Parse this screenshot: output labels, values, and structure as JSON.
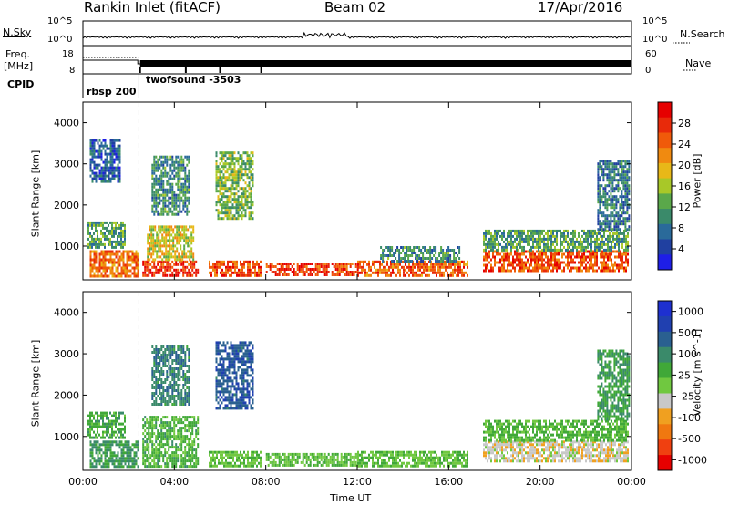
{
  "header": {
    "station": "Rankin Inlet (fitACF)",
    "beam": "Beam 02",
    "date": "17/Apr/2016"
  },
  "top_panels": {
    "nsky_label": "N.Sky",
    "nsky_ticks": [
      "10^5",
      "10^0"
    ],
    "nsearch_label": "N.Search",
    "nsearch_ticks": [
      "10^5",
      "10^0"
    ],
    "freq_label": "Freq.",
    "freq_unit": "[MHz]",
    "freq_ticks": [
      "18",
      "8"
    ],
    "nave_label": "Nave",
    "nave_ticks": [
      "60",
      "0"
    ],
    "cpid_label": "CPID",
    "cpid_entries": [
      "rbsp 200",
      "twofsound -3503"
    ]
  },
  "colors": {
    "power_scale": [
      "#1e1ee6",
      "#2040a0",
      "#2a6a9a",
      "#3a8a6a",
      "#5aa84a",
      "#a8c828",
      "#e8b818",
      "#f08a10",
      "#f05a0a",
      "#e82a0a",
      "#e60000"
    ],
    "velocity_scale": [
      "#e60000",
      "#f04010",
      "#f07810",
      "#f0a020",
      "#c8c8c8",
      "#70c840",
      "#40a838",
      "#3a8a6a",
      "#2a6090",
      "#2040b0",
      "#1e30d0"
    ]
  },
  "chart_data": [
    {
      "type": "heatmap",
      "title": "",
      "xlabel": "",
      "ylabel": "Slant Range [km]",
      "xlim": [
        "00:00",
        "24:00"
      ],
      "ylim": [
        180,
        4500
      ],
      "y_ticks": [
        "1000",
        "2000",
        "3000",
        "4000"
      ],
      "x_ticks": [
        "00:00",
        "04:00",
        "08:00",
        "12:00",
        "16:00",
        "20:00",
        "00:00"
      ],
      "colorbar": {
        "label": "Power [dB]",
        "range": [
          0,
          32
        ],
        "ticks": [
          "4",
          "8",
          "12",
          "16",
          "20",
          "24",
          "28"
        ]
      },
      "regions": [
        {
          "t": [
            0.3,
            2.4
          ],
          "r": [
            300,
            900
          ],
          "value": 24
        },
        {
          "t": [
            0.2,
            1.8
          ],
          "r": [
            1000,
            1600
          ],
          "value": 12
        },
        {
          "t": [
            0.3,
            1.6
          ],
          "r": [
            2600,
            3600
          ],
          "value": 6
        },
        {
          "t": [
            2.6,
            5.0
          ],
          "r": [
            300,
            650
          ],
          "value": 28
        },
        {
          "t": [
            2.8,
            4.8
          ],
          "r": [
            700,
            1500
          ],
          "value": 18
        },
        {
          "t": [
            3.0,
            4.6
          ],
          "r": [
            1800,
            3200
          ],
          "value": 10
        },
        {
          "t": [
            5.5,
            7.8
          ],
          "r": [
            300,
            650
          ],
          "value": 26
        },
        {
          "t": [
            5.8,
            7.4
          ],
          "r": [
            1700,
            3300
          ],
          "value": 14
        },
        {
          "t": [
            8.0,
            12.0
          ],
          "r": [
            300,
            600
          ],
          "value": 27
        },
        {
          "t": [
            12.0,
            16.8
          ],
          "r": [
            300,
            650
          ],
          "value": 25
        },
        {
          "t": [
            13.0,
            16.5
          ],
          "r": [
            650,
            1000
          ],
          "value": 10
        },
        {
          "t": [
            17.5,
            23.8
          ],
          "r": [
            400,
            900
          ],
          "value": 26
        },
        {
          "t": [
            17.5,
            23.8
          ],
          "r": [
            900,
            1400
          ],
          "value": 12
        },
        {
          "t": [
            22.5,
            23.9
          ],
          "r": [
            1400,
            3100
          ],
          "value": 8
        }
      ]
    },
    {
      "type": "heatmap",
      "title": "",
      "xlabel": "Time UT",
      "ylabel": "Slant Range [km]",
      "xlim": [
        "00:00",
        "24:00"
      ],
      "ylim": [
        180,
        4500
      ],
      "y_ticks": [
        "1000",
        "2000",
        "3000",
        "4000"
      ],
      "x_ticks": [
        "00:00",
        "04:00",
        "08:00",
        "12:00",
        "16:00",
        "20:00",
        "00:00"
      ],
      "colorbar": {
        "label": "Velocity [m s^-1]",
        "range": [
          -1000,
          1000
        ],
        "ticks": [
          "1000",
          "500",
          "100",
          "25",
          "-25",
          "-100",
          "-500",
          "-1000"
        ]
      },
      "regions": [
        {
          "t": [
            0.3,
            2.4
          ],
          "r": [
            300,
            900
          ],
          "value": 300
        },
        {
          "t": [
            0.2,
            1.8
          ],
          "r": [
            1000,
            1600
          ],
          "value": 200
        },
        {
          "t": [
            2.6,
            5.0
          ],
          "r": [
            300,
            1500
          ],
          "value": 150
        },
        {
          "t": [
            3.0,
            4.6
          ],
          "r": [
            1800,
            3200
          ],
          "value": 400
        },
        {
          "t": [
            5.5,
            7.8
          ],
          "r": [
            300,
            650
          ],
          "value": 60
        },
        {
          "t": [
            5.8,
            7.4
          ],
          "r": [
            1700,
            3300
          ],
          "value": 600
        },
        {
          "t": [
            8.0,
            12.0
          ],
          "r": [
            300,
            600
          ],
          "value": 80
        },
        {
          "t": [
            12.0,
            16.8
          ],
          "r": [
            300,
            650
          ],
          "value": 70
        },
        {
          "t": [
            17.5,
            23.8
          ],
          "r": [
            400,
            900
          ],
          "value": -200
        },
        {
          "t": [
            17.5,
            23.8
          ],
          "r": [
            900,
            1400
          ],
          "value": 120
        },
        {
          "t": [
            22.5,
            23.9
          ],
          "r": [
            1400,
            3100
          ],
          "value": 250
        }
      ]
    }
  ]
}
